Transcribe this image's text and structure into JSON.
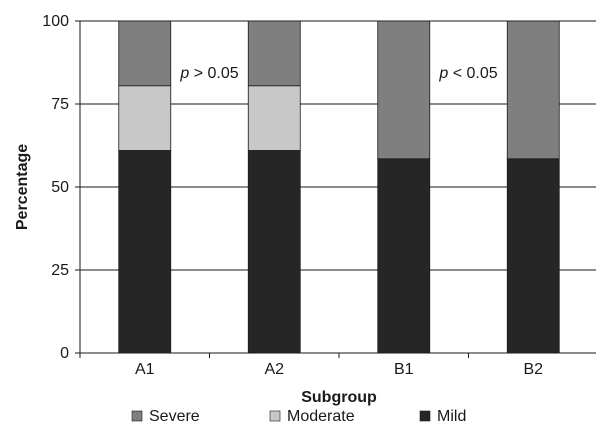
{
  "chart_data": {
    "type": "bar",
    "stacked": true,
    "percent": true,
    "categories": [
      "A1",
      "A2",
      "B1",
      "B2"
    ],
    "series": [
      {
        "name": "Mild",
        "values": [
          61,
          61,
          58.5,
          58.5
        ],
        "color": "#262626"
      },
      {
        "name": "Moderate",
        "values": [
          19.5,
          19.5,
          0,
          0
        ],
        "color": "#c8c8c8"
      },
      {
        "name": "Severe",
        "values": [
          19.5,
          19.5,
          41.5,
          41.5
        ],
        "color": "#7f7f7f"
      }
    ],
    "title": "",
    "xlabel": "Subgroup",
    "ylabel": "Percentage",
    "ylim": [
      0,
      100
    ],
    "yticks": [
      0,
      25,
      50,
      75,
      100
    ],
    "grid": true,
    "legend": {
      "placement": "bottom",
      "order": [
        "Severe",
        "Moderate",
        "Mild"
      ]
    },
    "annotations": [
      {
        "text_prefix": "p",
        "text_rest": " > 0.05",
        "between": [
          "A1",
          "A2"
        ]
      },
      {
        "text_prefix": "p",
        "text_rest": " < 0.05",
        "between": [
          "B1",
          "B2"
        ]
      }
    ]
  }
}
